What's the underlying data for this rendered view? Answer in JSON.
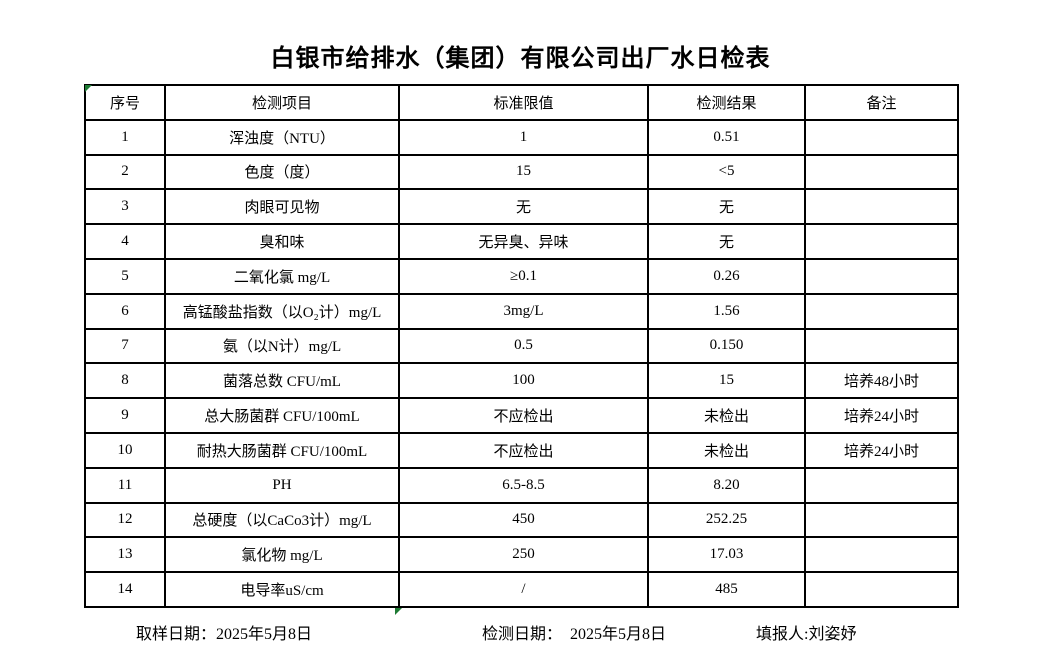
{
  "title": "白银市给排水（集团）有限公司出厂水日检表",
  "table": {
    "headers": [
      "序号",
      "检测项目",
      "标准限值",
      "检测结果",
      "备注"
    ],
    "rows": [
      [
        "1",
        "浑浊度（NTU）",
        "1",
        "0.51",
        ""
      ],
      [
        "2",
        "色度（度）",
        "15",
        "<5",
        ""
      ],
      [
        "3",
        "肉眼可见物",
        "无",
        "无",
        ""
      ],
      [
        "4",
        "臭和味",
        "无异臭、异味",
        "无",
        ""
      ],
      [
        "5",
        "二氧化氯 mg/L",
        "≥0.1",
        "0.26",
        ""
      ],
      [
        "6",
        "高锰酸盐指数（以O₂计）mg/L",
        "3mg/L",
        "1.56",
        ""
      ],
      [
        "7",
        "氨（以N计）mg/L",
        "0.5",
        "0.150",
        ""
      ],
      [
        "8",
        "菌落总数 CFU/mL",
        "100",
        "15",
        "培养48小时"
      ],
      [
        "9",
        "总大肠菌群 CFU/100mL",
        "不应检出",
        "未检出",
        "培养24小时"
      ],
      [
        "10",
        "耐热大肠菌群 CFU/100mL",
        "不应检出",
        "未检出",
        "培养24小时"
      ],
      [
        "11",
        "PH",
        "6.5-8.5",
        "8.20",
        ""
      ],
      [
        "12",
        "总硬度（以CaCo3计）mg/L",
        "450",
        "252.25",
        ""
      ],
      [
        "13",
        "氯化物 mg/L",
        "250",
        "17.03",
        ""
      ],
      [
        "14",
        "电导率uS/cm",
        "/",
        "485",
        ""
      ]
    ]
  },
  "footer": {
    "sampling_date_label": "取样日期：",
    "sampling_date": "2025年5月8日",
    "test_date_label": "检测日期：  ",
    "test_date": "2025年5月8日",
    "reporter_label": "填报人:",
    "reporter": "刘姿妤"
  },
  "colors": {
    "border": "#000000",
    "marker_green": "#1e7b34"
  }
}
